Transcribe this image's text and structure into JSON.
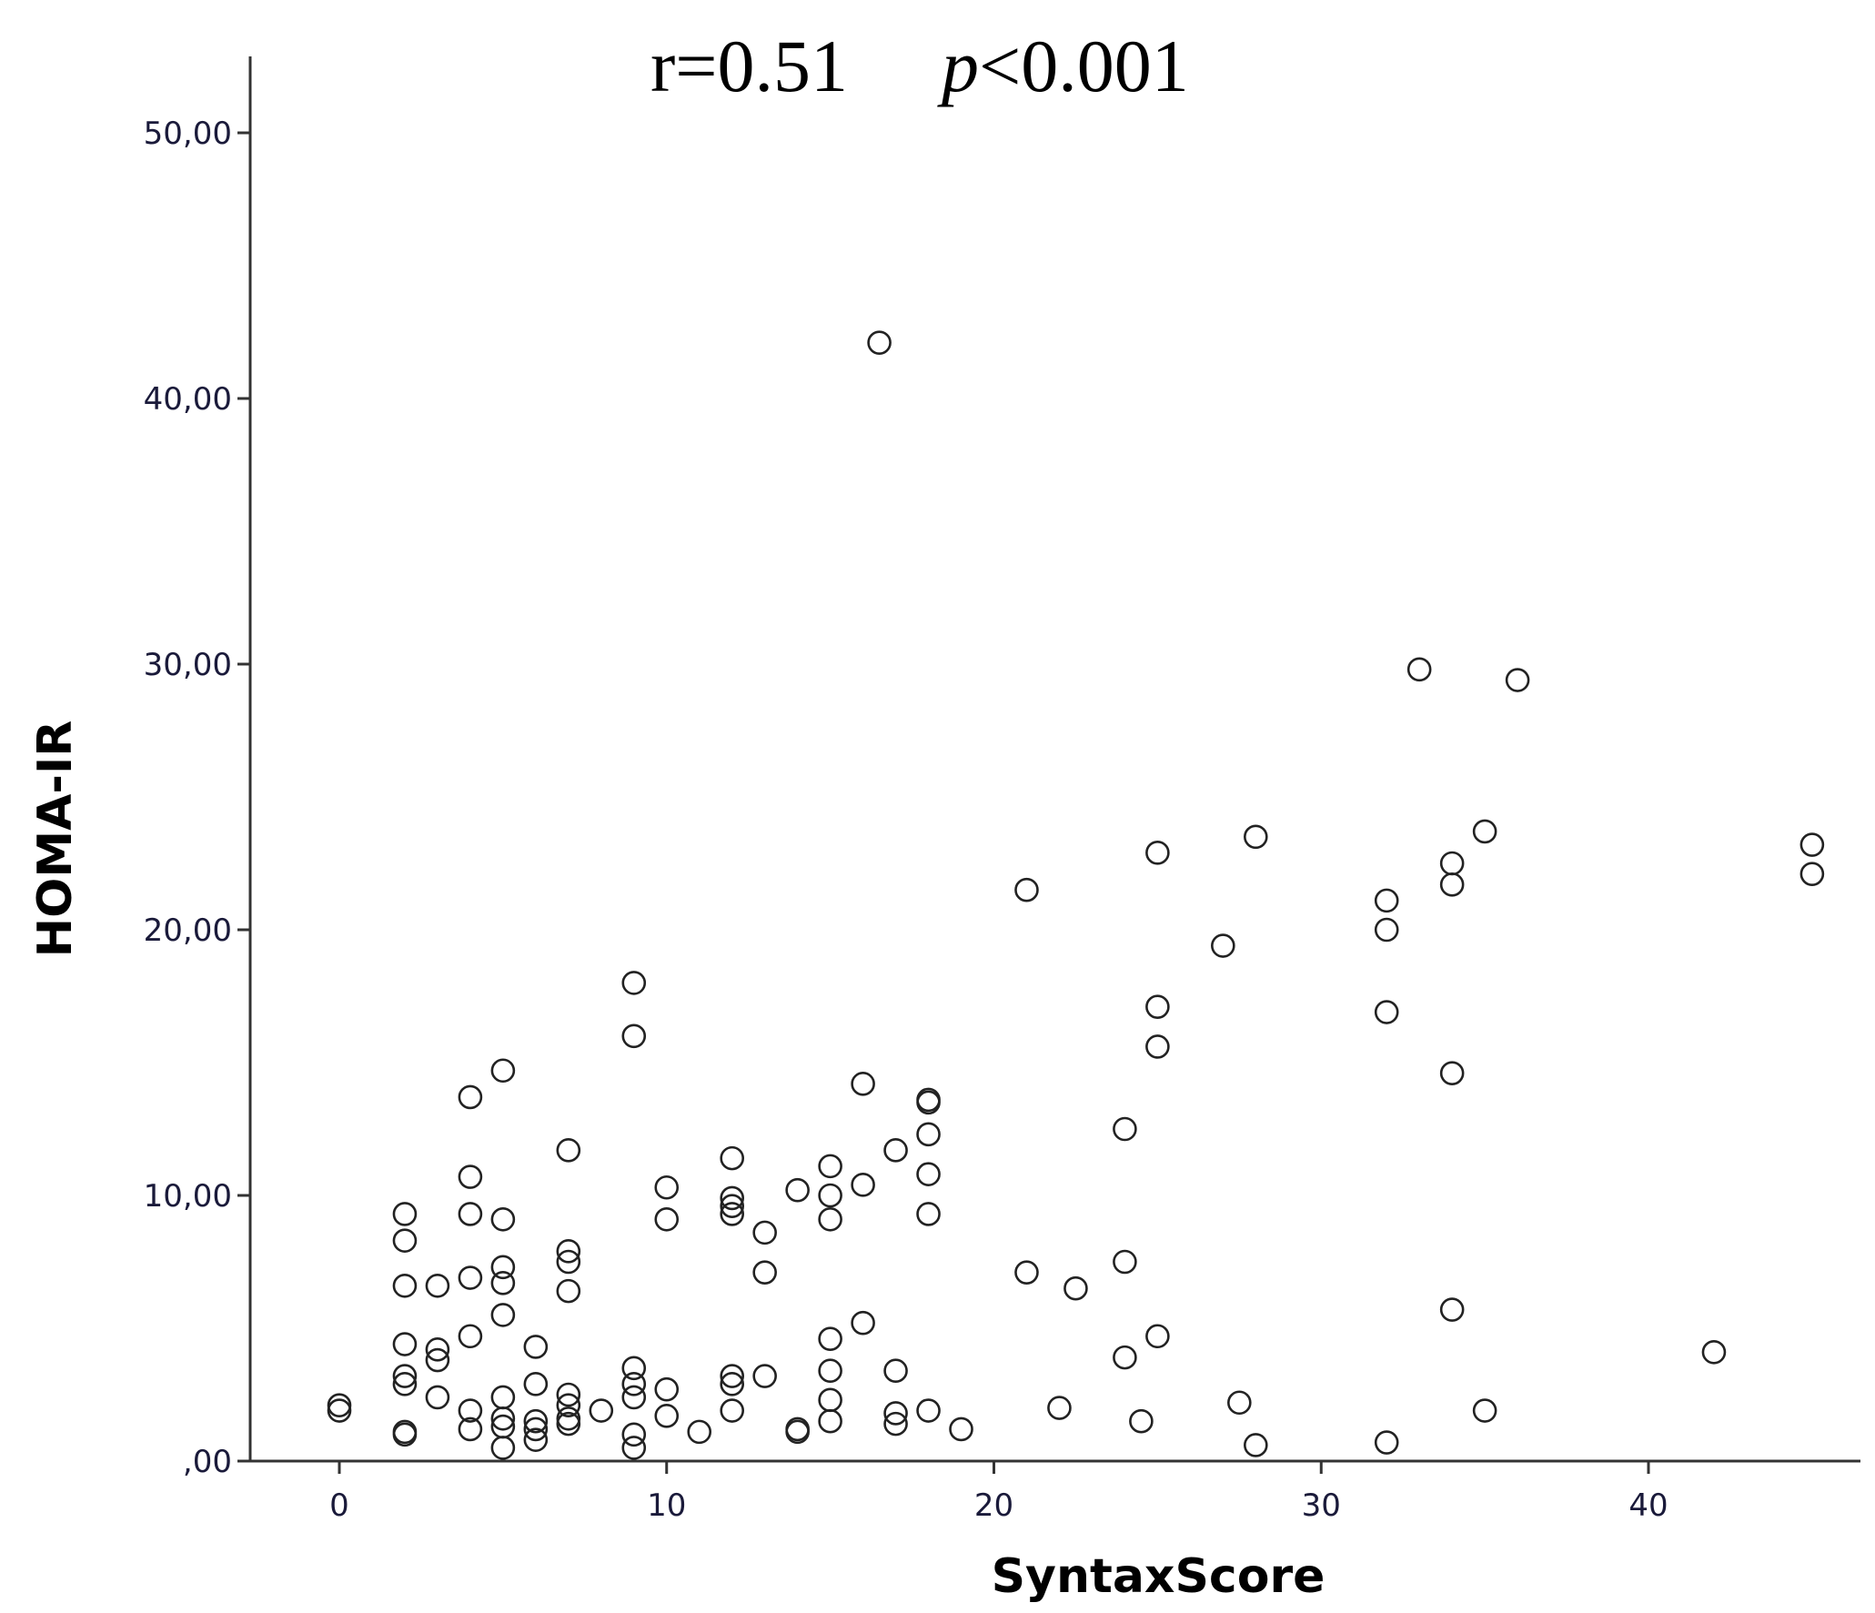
{
  "chart_data": {
    "type": "scatter",
    "title": {
      "r_text": "r=0.51",
      "p_symbol": "p",
      "p_text": "<0.001"
    },
    "xlabel": "SyntaxScore",
    "ylabel": "HOMA-IR",
    "xlim": [
      -2.7,
      46.5
    ],
    "ylim": [
      0,
      50
    ],
    "x_ticks": [
      0,
      10,
      20,
      30,
      40
    ],
    "x_tick_labels": [
      "0",
      "10",
      "20",
      "30",
      "40"
    ],
    "y_ticks": [
      0,
      10,
      20,
      30,
      40,
      50
    ],
    "y_tick_labels": [
      ",00",
      "10,00",
      "20,00",
      "30,00",
      "40,00",
      "50,00"
    ],
    "grid": false,
    "legend": "none",
    "marker": "open-circle",
    "points": [
      [
        0,
        1.9
      ],
      [
        0,
        2.1
      ],
      [
        2,
        1.1
      ],
      [
        2,
        1.0
      ],
      [
        2,
        2.9
      ],
      [
        2,
        3.2
      ],
      [
        2,
        4.4
      ],
      [
        2,
        6.6
      ],
      [
        2,
        8.3
      ],
      [
        2,
        9.3
      ],
      [
        3,
        2.4
      ],
      [
        3,
        3.8
      ],
      [
        3,
        4.2
      ],
      [
        3,
        6.6
      ],
      [
        4,
        1.2
      ],
      [
        4,
        1.9
      ],
      [
        4,
        4.7
      ],
      [
        4,
        6.9
      ],
      [
        4,
        9.3
      ],
      [
        4,
        10.7
      ],
      [
        4,
        13.7
      ],
      [
        5,
        0.5
      ],
      [
        5,
        1.3
      ],
      [
        5,
        1.6
      ],
      [
        5,
        2.4
      ],
      [
        5,
        5.5
      ],
      [
        5,
        6.7
      ],
      [
        5,
        7.3
      ],
      [
        5,
        9.1
      ],
      [
        5,
        14.7
      ],
      [
        6,
        0.8
      ],
      [
        6,
        1.2
      ],
      [
        6,
        1.5
      ],
      [
        6,
        2.9
      ],
      [
        6,
        4.3
      ],
      [
        7,
        1.4
      ],
      [
        7,
        1.6
      ],
      [
        7,
        2.1
      ],
      [
        7,
        2.5
      ],
      [
        7,
        6.4
      ],
      [
        7,
        7.5
      ],
      [
        7,
        7.9
      ],
      [
        7,
        11.7
      ],
      [
        8,
        1.9
      ],
      [
        9,
        0.5
      ],
      [
        9,
        1.0
      ],
      [
        9,
        2.4
      ],
      [
        9,
        2.9
      ],
      [
        9,
        3.5
      ],
      [
        9,
        16.0
      ],
      [
        9,
        18.0
      ],
      [
        10,
        1.7
      ],
      [
        10,
        2.7
      ],
      [
        10,
        9.1
      ],
      [
        10,
        10.3
      ],
      [
        11,
        1.1
      ],
      [
        12,
        1.9
      ],
      [
        12,
        2.9
      ],
      [
        12,
        3.2
      ],
      [
        12,
        9.3
      ],
      [
        12,
        9.6
      ],
      [
        12,
        9.9
      ],
      [
        12,
        11.4
      ],
      [
        13,
        3.2
      ],
      [
        13,
        7.1
      ],
      [
        13,
        8.6
      ],
      [
        14,
        1.1
      ],
      [
        14,
        1.2
      ],
      [
        14,
        10.2
      ],
      [
        15,
        1.5
      ],
      [
        15,
        2.3
      ],
      [
        15,
        3.4
      ],
      [
        15,
        4.6
      ],
      [
        15,
        9.1
      ],
      [
        15,
        10.0
      ],
      [
        15,
        11.1
      ],
      [
        16,
        5.2
      ],
      [
        16,
        10.4
      ],
      [
        16,
        14.2
      ],
      [
        16.5,
        42.1
      ],
      [
        17,
        1.4
      ],
      [
        17,
        1.8
      ],
      [
        17,
        3.4
      ],
      [
        17,
        11.7
      ],
      [
        18,
        1.9
      ],
      [
        18,
        9.3
      ],
      [
        18,
        10.8
      ],
      [
        18,
        12.3
      ],
      [
        18,
        13.5
      ],
      [
        18,
        13.6
      ],
      [
        19,
        1.2
      ],
      [
        21,
        7.1
      ],
      [
        21,
        21.5
      ],
      [
        22,
        2.0
      ],
      [
        22.5,
        6.5
      ],
      [
        24,
        3.9
      ],
      [
        24,
        7.5
      ],
      [
        24,
        12.5
      ],
      [
        24.5,
        1.5
      ],
      [
        25,
        4.7
      ],
      [
        25,
        15.6
      ],
      [
        25,
        17.1
      ],
      [
        25,
        22.9
      ],
      [
        27,
        19.4
      ],
      [
        27.5,
        2.2
      ],
      [
        28,
        0.6
      ],
      [
        28,
        23.5
      ],
      [
        32,
        0.7
      ],
      [
        32,
        16.9
      ],
      [
        32,
        20.0
      ],
      [
        32,
        21.1
      ],
      [
        33,
        29.8
      ],
      [
        34,
        5.7
      ],
      [
        34,
        14.6
      ],
      [
        34,
        21.7
      ],
      [
        34,
        22.5
      ],
      [
        35,
        1.9
      ],
      [
        35,
        23.7
      ],
      [
        36,
        29.4
      ],
      [
        42,
        4.1
      ],
      [
        45,
        22.1
      ],
      [
        45,
        23.2
      ]
    ]
  }
}
